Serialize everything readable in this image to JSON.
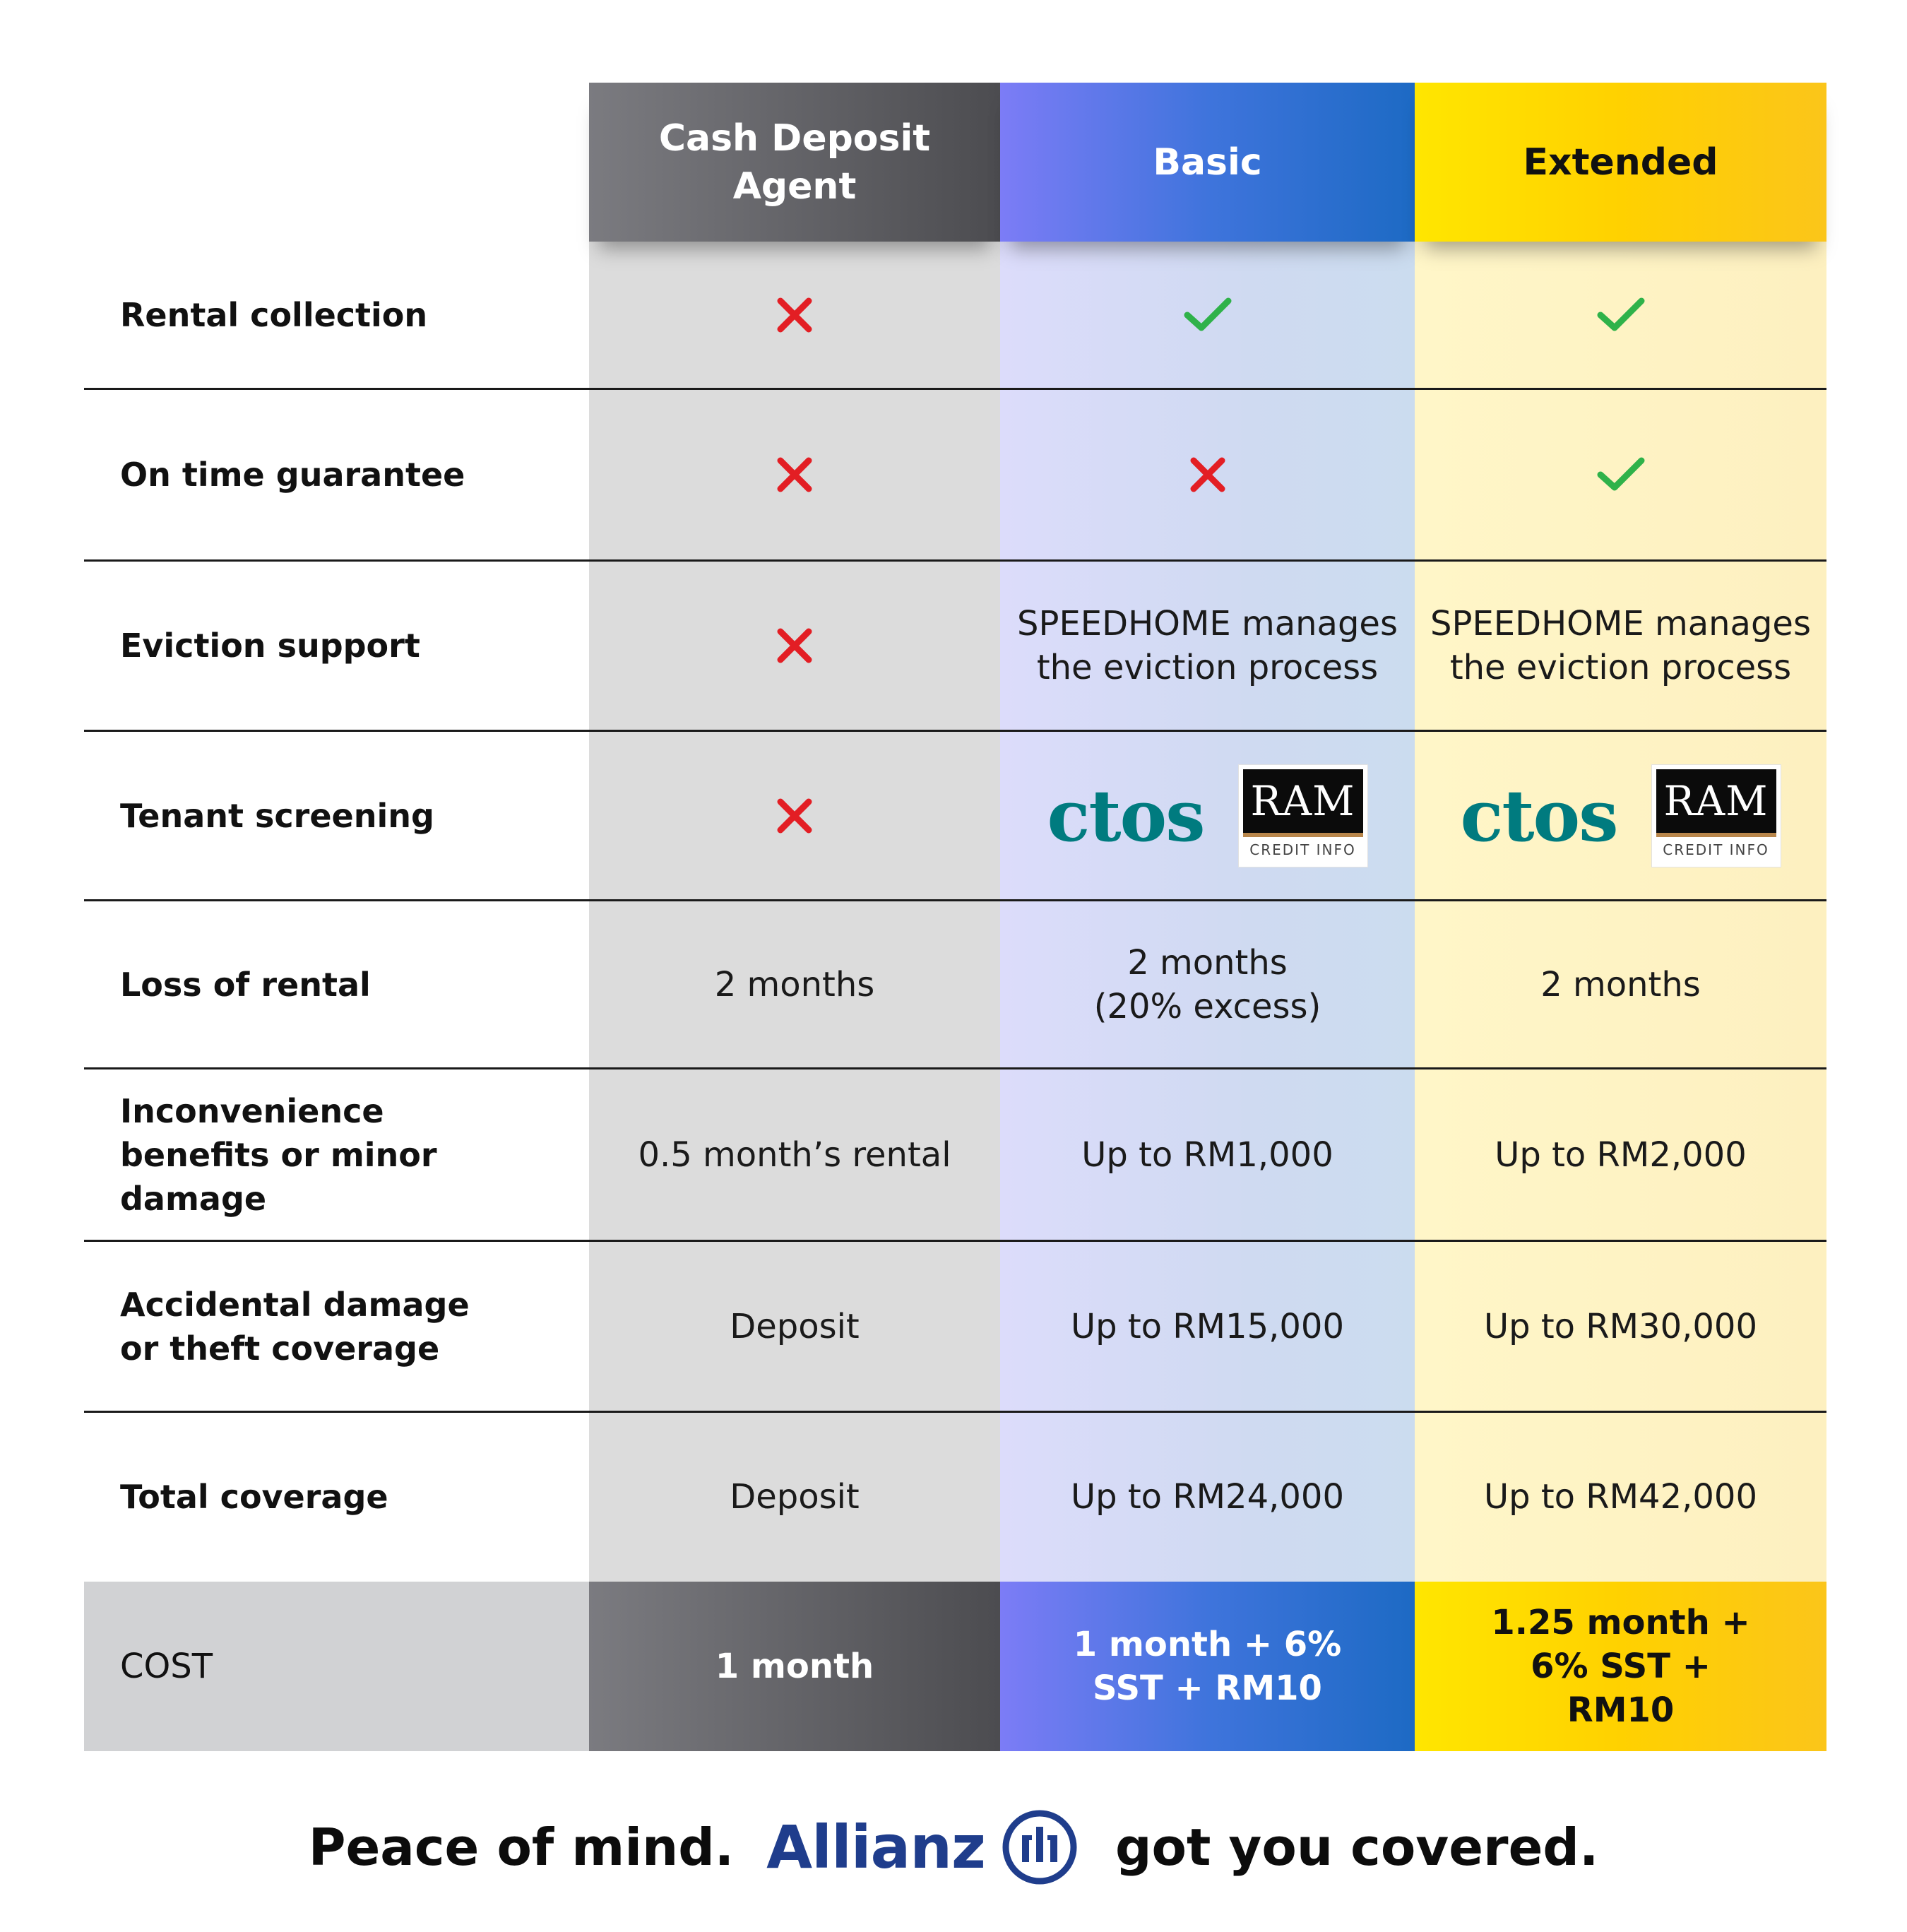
{
  "columns": [
    {
      "header": "Cash Deposit Agent"
    },
    {
      "header": "Basic"
    },
    {
      "header": "Extended"
    }
  ],
  "colors": {
    "check": "#2fb24a",
    "cross": "#e31e24",
    "allianz_blue": "#1f3d8c",
    "ctos_teal": "#007b7f"
  },
  "rows": [
    {
      "label": "Rental collection",
      "cells": [
        {
          "icon": "cross-icon"
        },
        {
          "icon": "check-icon"
        },
        {
          "icon": "check-icon"
        }
      ]
    },
    {
      "label": "On time guarantee",
      "cells": [
        {
          "icon": "cross-icon"
        },
        {
          "icon": "cross-icon"
        },
        {
          "icon": "check-icon"
        }
      ]
    },
    {
      "label": "Eviction support",
      "cells": [
        {
          "icon": "cross-icon"
        },
        {
          "text": "SPEEDHOME manages the eviction process"
        },
        {
          "text": "SPEEDHOME manages the eviction process"
        }
      ]
    },
    {
      "label": "Tenant screening",
      "cells": [
        {
          "icon": "cross-icon"
        },
        {
          "logos": [
            "ctos",
            "RAM CREDIT INFO"
          ]
        },
        {
          "logos": [
            "ctos",
            "RAM CREDIT INFO"
          ]
        }
      ]
    },
    {
      "label": "Loss of rental",
      "cells": [
        {
          "text": "2 months"
        },
        {
          "text": "2 months (20% excess)"
        },
        {
          "text": "2 months"
        }
      ]
    },
    {
      "label": "Inconvenience benefits or minor damage",
      "cells": [
        {
          "text": "0.5 month’s rental"
        },
        {
          "text": "Up to RM1,000"
        },
        {
          "text": "Up to RM2,000"
        }
      ]
    },
    {
      "label": "Accidental damage or theft coverage",
      "cells": [
        {
          "text": "Deposit"
        },
        {
          "text": "Up to RM15,000"
        },
        {
          "text": "Up to RM30,000"
        }
      ]
    },
    {
      "label": "Total coverage",
      "cells": [
        {
          "text": "Deposit"
        },
        {
          "text": "Up to RM24,000"
        },
        {
          "text": "Up to RM42,000"
        }
      ]
    }
  ],
  "cost": {
    "label": "COST",
    "values": [
      "1 month",
      "1 month + 6% SST + RM10",
      "1.25 month + 6% SST + RM10"
    ]
  },
  "logos": {
    "ctos": "ctos",
    "ram_main": "RAM",
    "ram_sub": "CREDIT INFO"
  },
  "footer": {
    "lead": "Peace of mind.",
    "brand": "Allianz",
    "tail": "got you covered.",
    "brand_icon": "allianz-emblem-icon"
  }
}
